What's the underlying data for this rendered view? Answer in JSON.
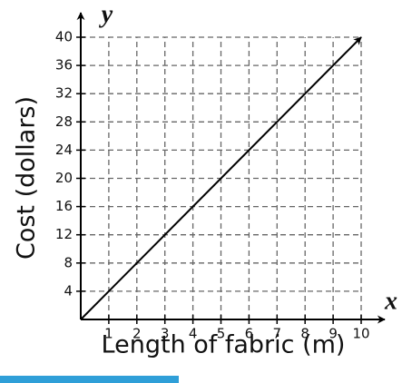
{
  "chart_data": {
    "type": "line",
    "xlabel": "Length of fabric (m)",
    "ylabel": "Cost (dollars)",
    "x_axis_letter": "x",
    "y_axis_letter": "y",
    "x": [
      0,
      10
    ],
    "values": [
      0,
      40
    ],
    "color": "#000000",
    "xlim": [
      0,
      10
    ],
    "xticks": [
      1,
      2,
      3,
      4,
      5,
      6,
      7,
      8,
      9,
      10
    ],
    "ylim": [
      0,
      40
    ],
    "yticks": [
      4,
      8,
      12,
      16,
      20,
      24,
      28,
      32,
      36,
      40
    ],
    "grid": true
  }
}
